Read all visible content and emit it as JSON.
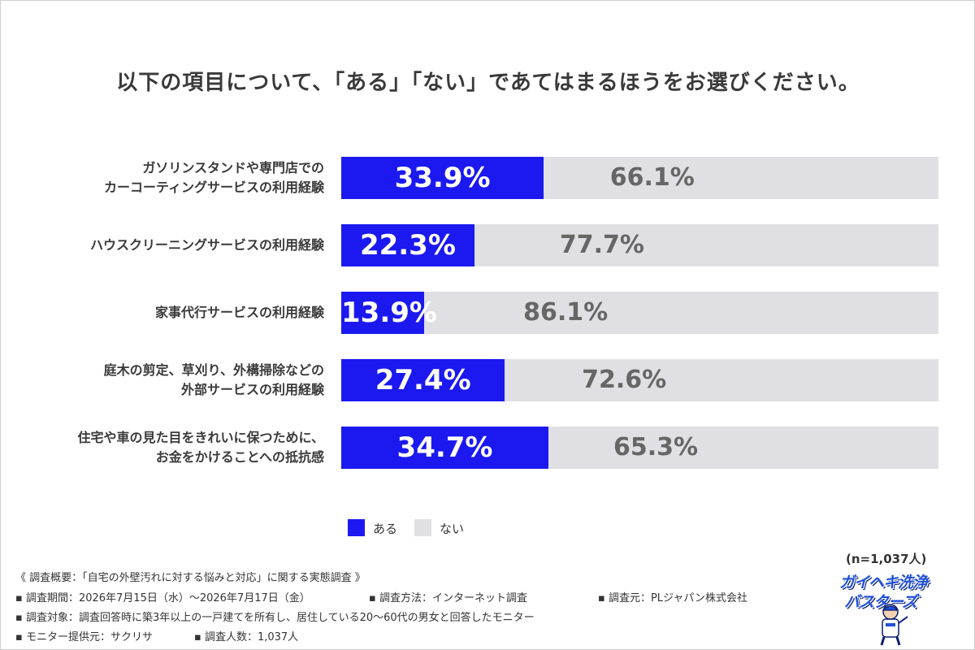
{
  "title": "以下の項目について、「ある」「ない」であてはまるほうをお選びください。",
  "chart_data": {
    "type": "bar",
    "orientation": "horizontal",
    "stacked": true,
    "percent": true,
    "categories": [
      [
        "ガソリンスタンドや専門店での",
        "カーコーティングサービスの利用経験"
      ],
      [
        "ハウスクリーニングサービスの利用経験"
      ],
      [
        "家事代行サービスの利用経験"
      ],
      [
        "庭木の剪定、草刈り、外構掃除などの",
        "外部サービスの利用経験"
      ],
      [
        "住宅や車の見た目をきれいに保つために、",
        "お金をかけることへの抵抗感"
      ]
    ],
    "series": [
      {
        "name": "ある",
        "color": "#1b19f0",
        "values": [
          33.9,
          22.3,
          13.9,
          27.4,
          34.7
        ],
        "labels": [
          "33.9%",
          "22.3%",
          "13.9%",
          "27.4%",
          "34.7%"
        ]
      },
      {
        "name": "ない",
        "color": "#e0dfe3",
        "values": [
          66.1,
          77.7,
          86.1,
          72.6,
          65.3
        ],
        "labels": [
          "66.1%",
          "77.7%",
          "86.1%",
          "72.6%",
          "65.3%"
        ]
      }
    ],
    "xlim": [
      0,
      100
    ],
    "legend": "bottom-center"
  },
  "sample": "(n=1,037人)",
  "notes": [
    "《 調査概要：「自宅の外壁汚れに対する悩みと対応」に関する実態調査 》",
    "▪ 調査期間：2026年7月15日（水）〜2026年7月17日（金）",
    "▪ 調査方法：インターネット調査",
    "▪ 調査元：PLジャパン株式会社",
    "▪ 調査対象：調査回答時に築3年以上の一戸建てを所有し、居住している20〜60代の男女と回答したモニター",
    "▪ モニター提供元：サクリサ",
    "▪ 調査人数：1,037人"
  ],
  "logo": {
    "lines": [
      "ガイヘキ洗浄",
      "バスターズ"
    ],
    "name": "gaiheki-busters-logo"
  }
}
